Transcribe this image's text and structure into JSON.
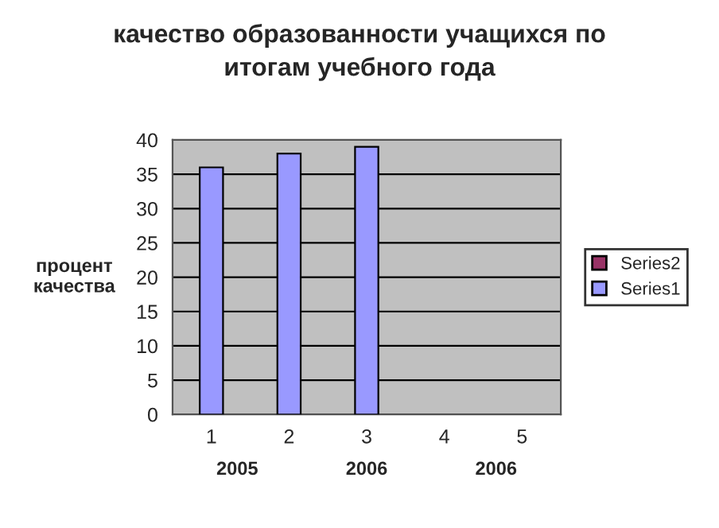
{
  "chart_data": {
    "type": "bar",
    "title": "качество образованности учащихся по\nитогам учебного года",
    "ylabel": "процент\nкачества",
    "categories": [
      "1",
      "2",
      "3",
      "4",
      "5"
    ],
    "series": [
      {
        "name": "Series1",
        "color": "#9999ff",
        "values": [
          36,
          38,
          39,
          null,
          null
        ]
      },
      {
        "name": "Series2",
        "color": "#993366",
        "values": [
          null,
          null,
          null,
          null,
          null
        ]
      }
    ],
    "annotations": [
      "2005",
      "2006",
      "2006"
    ],
    "ylim": [
      0,
      40
    ],
    "yticks": [
      0,
      5,
      10,
      15,
      20,
      25,
      30,
      35,
      40
    ],
    "grid": "y",
    "legend": "right"
  }
}
